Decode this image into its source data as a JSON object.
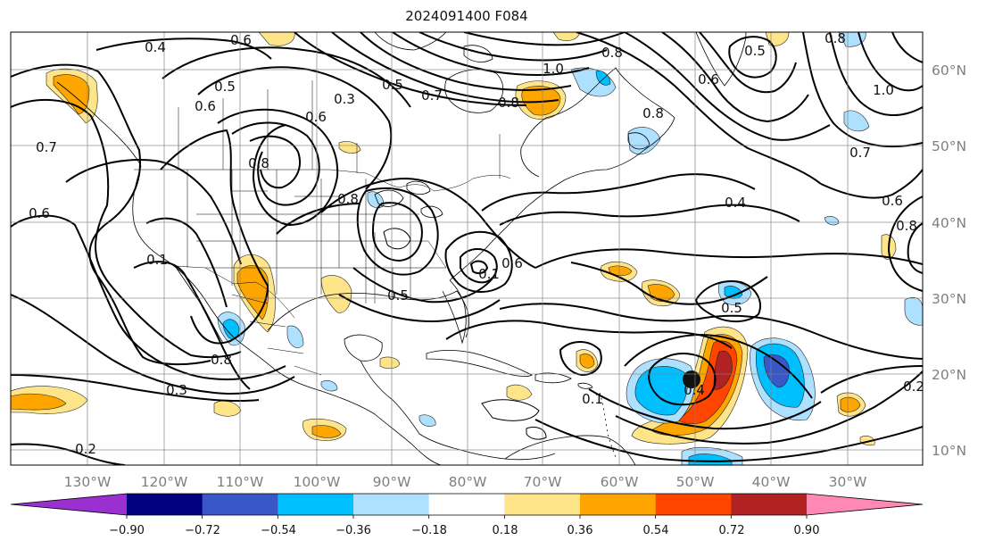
{
  "figure": {
    "title": "2024091400 F084",
    "longitude_labels": [
      "130°W",
      "120°W",
      "110°W",
      "100°W",
      "90°W",
      "80°W",
      "70°W",
      "60°W",
      "50°W",
      "40°W",
      "30°W"
    ],
    "latitude_labels": [
      "60°N",
      "50°N",
      "40°N",
      "30°N",
      "20°N",
      "10°N"
    ],
    "contour_labels": [
      "0.4",
      "0.6",
      "0.5",
      "0.6",
      "0.3",
      "0.6",
      "0.5",
      "0.7",
      "0.8",
      "0.8",
      "1.0",
      "0.8",
      "0.6",
      "0.5",
      "0.8",
      "1.0",
      "0.7",
      "0.7",
      "0.8",
      "0.8",
      "0.4",
      "0.6",
      "0.6",
      "0.8",
      "0.1",
      "0.1",
      "0.6",
      "0.5",
      "0.8",
      "0.3",
      "0.2",
      "0.1",
      "0.4",
      "0.5",
      "0.2"
    ],
    "colorbar": {
      "ticks": [
        "−0.90",
        "−0.72",
        "−0.54",
        "−0.36",
        "−0.18",
        "0.18",
        "0.36",
        "0.54",
        "0.72",
        "0.90"
      ],
      "colors": [
        "#9b30d0",
        "#000080",
        "#3a57c8",
        "#00bfff",
        "#aee0ff",
        "#ffffff",
        "#ffe58a",
        "#ffa500",
        "#ff4500",
        "#b22222",
        "#ff88b4"
      ]
    }
  },
  "map_view": {
    "lon_range": [
      -137.5,
      -17.5
    ],
    "lat_range": [
      7.5,
      65
    ],
    "shaded_field_range": [
      -0.9,
      0.9
    ]
  }
}
